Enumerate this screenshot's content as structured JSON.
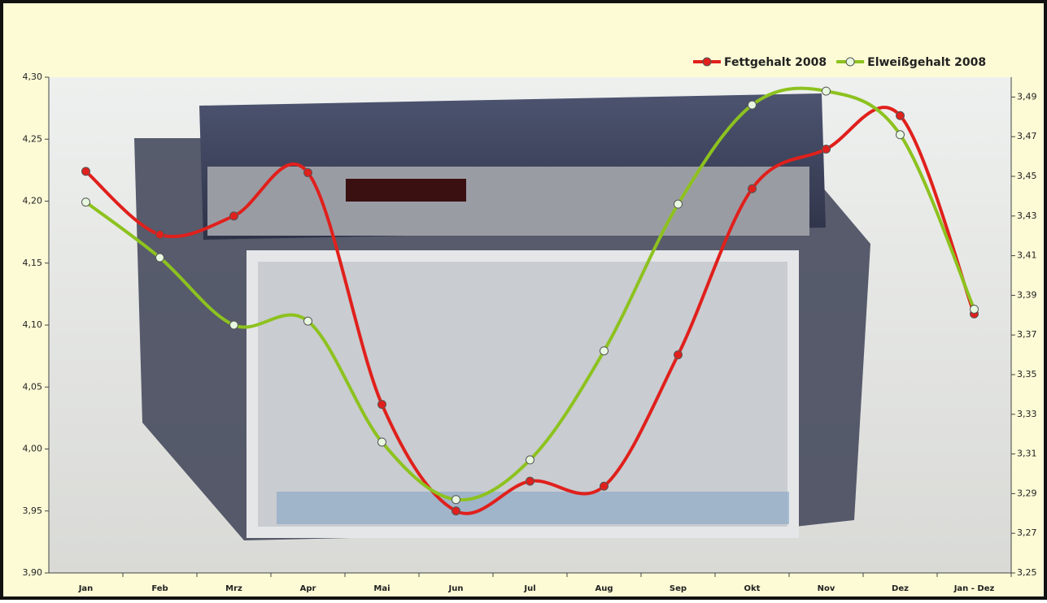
{
  "chart_data": {
    "type": "line",
    "categories": [
      "Jan",
      "Feb",
      "Mrz",
      "Apr",
      "Mai",
      "Jun",
      "Jul",
      "Aug",
      "Sep",
      "Okt",
      "Nov",
      "Dez",
      "Jan - Dez"
    ],
    "series": [
      {
        "name": "Fettgehalt 2008",
        "color": "#e0201c",
        "marker_fill": "#e0201c",
        "values": [
          4.224,
          4.173,
          4.188,
          4.223,
          4.036,
          3.95,
          3.974,
          3.97,
          4.076,
          4.21,
          4.242,
          4.269,
          4.109
        ]
      },
      {
        "name": "Elweißgehalt 2008",
        "color": "#8dc21f",
        "marker_fill": "#e8f7e0",
        "axis": "y2",
        "values": [
          3.437,
          3.409,
          3.375,
          3.377,
          3.316,
          3.287,
          3.307,
          3.362,
          3.436,
          3.486,
          3.493,
          3.471,
          3.383
        ]
      }
    ],
    "ylim": [
      3.9,
      4.3
    ],
    "yticks": [
      {
        "value": 3.9,
        "label": "3,90"
      },
      {
        "value": 3.95,
        "label": "3,95"
      },
      {
        "value": 4.0,
        "label": "4,00"
      },
      {
        "value": 4.05,
        "label": "4,05"
      },
      {
        "value": 4.1,
        "label": "4,10"
      },
      {
        "value": 4.15,
        "label": "4,15"
      },
      {
        "value": 4.2,
        "label": "4,20"
      },
      {
        "value": 4.25,
        "label": "4,25"
      },
      {
        "value": 4.3,
        "label": "4,30"
      }
    ],
    "y2lim": [
      3.25,
      3.5
    ],
    "y2ticks": [
      {
        "value": 3.25,
        "label": "3,25"
      },
      {
        "value": 3.27,
        "label": "3,27"
      },
      {
        "value": 3.29,
        "label": "3,29"
      },
      {
        "value": 3.31,
        "label": "3,31"
      },
      {
        "value": 3.33,
        "label": "3,33"
      },
      {
        "value": 3.35,
        "label": "3,35"
      },
      {
        "value": 3.37,
        "label": "3,37"
      },
      {
        "value": 3.39,
        "label": "3,39"
      },
      {
        "value": 3.41,
        "label": "3,41"
      },
      {
        "value": 3.43,
        "label": "3,43"
      },
      {
        "value": 3.45,
        "label": "3,45"
      },
      {
        "value": 3.47,
        "label": "3,47"
      },
      {
        "value": 3.49,
        "label": "3,49"
      }
    ],
    "smooth": true,
    "legend": "top-right"
  }
}
